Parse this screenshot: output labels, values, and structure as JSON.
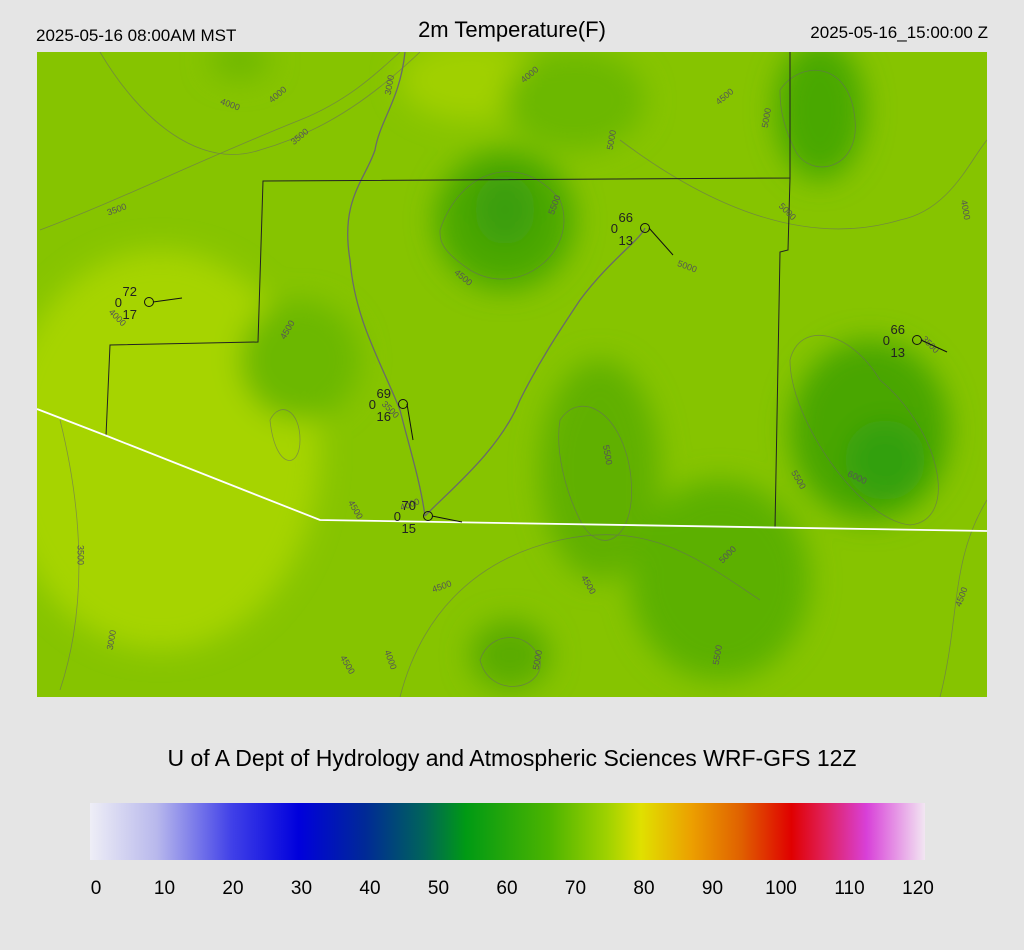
{
  "header": {
    "left": "2025-05-16 08:00AM MST",
    "title": "2m Temperature(F)",
    "right": "2025-05-16_15:00:00 Z"
  },
  "contour_labels": [
    4000,
    4000,
    3500,
    3000,
    4000,
    4500,
    5000,
    5000,
    5500,
    5000,
    4000,
    3500,
    4500,
    5000,
    4500,
    4000,
    3500,
    3500,
    5500,
    5500,
    6000,
    4500,
    4000,
    3500,
    5000,
    4500,
    4500,
    4500,
    3000,
    4000,
    4500,
    5000,
    5500
  ],
  "stations": [
    {
      "temp": 72,
      "left": 0,
      "bottom": 17
    },
    {
      "temp": 66,
      "left": 0,
      "bottom": 13
    },
    {
      "temp": 66,
      "left": 0,
      "bottom": 13
    },
    {
      "temp": 69,
      "left": 0,
      "bottom": 16
    },
    {
      "temp": 70,
      "left": 0,
      "bottom": 15
    }
  ],
  "footer": {
    "credit": "U of A Dept of Hydrology and Atmospheric Sciences WRF-GFS 12Z"
  },
  "colorbar": {
    "ticks": [
      0,
      10,
      20,
      30,
      40,
      50,
      60,
      70,
      80,
      90,
      100,
      110,
      120
    ]
  }
}
